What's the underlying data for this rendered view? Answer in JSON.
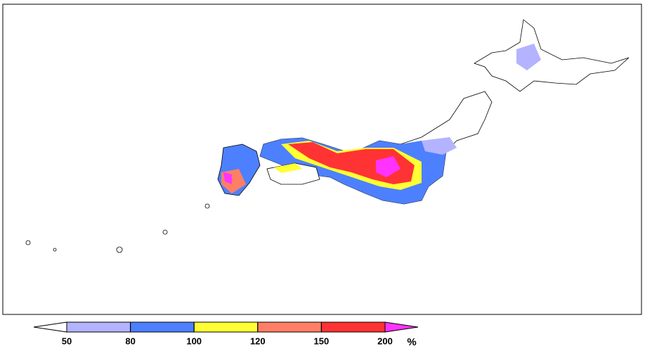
{
  "colorbar": {
    "ticks": [
      50,
      80,
      100,
      120,
      150,
      200
    ],
    "unit": "%",
    "colors": [
      "#ffffff",
      "#b3b3ff",
      "#4d80ff",
      "#ffff33",
      "#ff7f66",
      "#ff3333",
      "#ff33ff"
    ]
  }
}
